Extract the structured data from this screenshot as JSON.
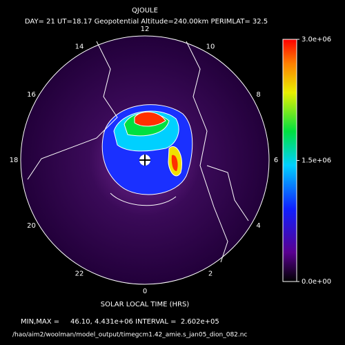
{
  "header": {
    "title": "QJOULE",
    "subtitle": "DAY= 21 UT=18.17 Geopotential Altitude=240.00km PERIMLAT= 32.5"
  },
  "map": {
    "hour_labels": [
      "12",
      "14",
      "16",
      "18",
      "20",
      "22",
      "0",
      "2",
      "4",
      "6",
      "8",
      "10"
    ]
  },
  "colorbar": {
    "lim": [
      0,
      3000000
    ],
    "ticks": [
      {
        "value": 3000000,
        "label": "3.0e+06"
      },
      {
        "value": 1500000,
        "label": "1.5e+06"
      },
      {
        "value": 0,
        "label": "0.0e+00"
      }
    ]
  },
  "footer": {
    "axis_label": "SOLAR LOCAL TIME (HRS)",
    "minmax": "MIN,MAX =     46.10, 4.431e+06 INTERVAL =  2.602e+05",
    "path": "/hao/aim2/woolman/model_output/timegcm1.42_amie.s_jan05_dion_082.nc"
  }
}
